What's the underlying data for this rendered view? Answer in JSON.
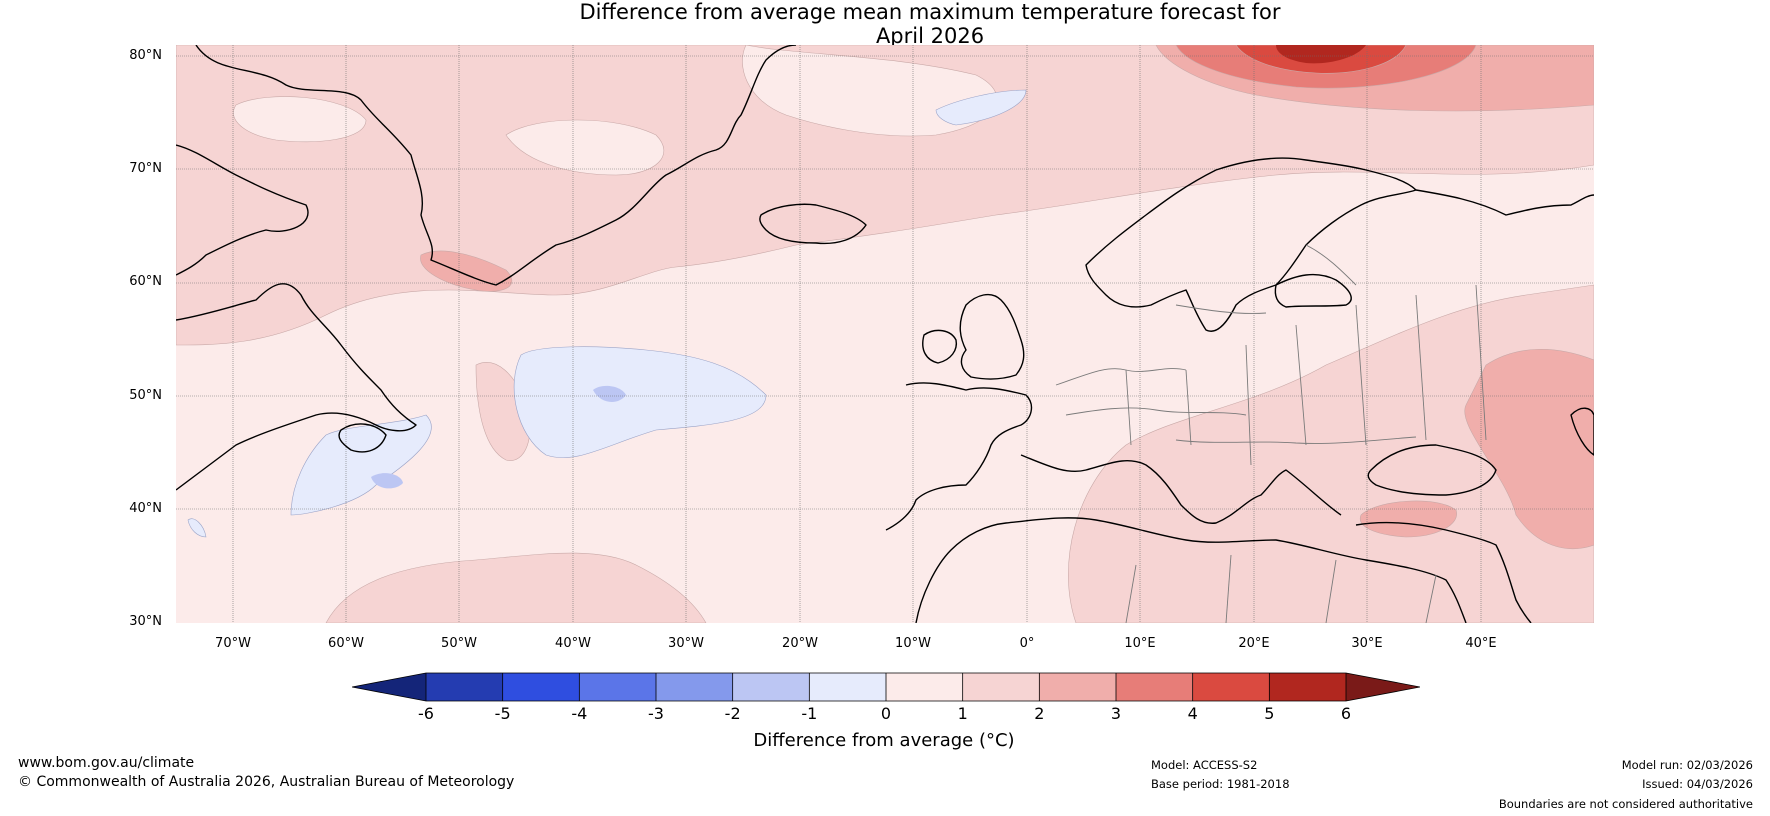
{
  "title": {
    "line1": "Difference from average mean maximum temperature forecast for",
    "line2": "April 2026"
  },
  "map": {
    "lat_labels": [
      "80°N",
      "70°N",
      "60°N",
      "50°N",
      "40°N",
      "30°N"
    ],
    "lon_labels": [
      "70°W",
      "60°W",
      "50°W",
      "40°W",
      "30°W",
      "20°W",
      "10°W",
      "0°",
      "10°E",
      "20°E",
      "30°E",
      "40°E"
    ],
    "lat_range": [
      30,
      81
    ],
    "lon_range": [
      -75,
      50
    ]
  },
  "colorbar": {
    "label": "Difference from average (°C)",
    "ticks": [
      "-6",
      "-5",
      "-4",
      "-3",
      "-2",
      "-1",
      "0",
      "1",
      "2",
      "3",
      "4",
      "5",
      "6"
    ],
    "colors": [
      "#142579",
      "#243cb1",
      "#2f4ee0",
      "#5b75e8",
      "#8499ec",
      "#bcc6f3",
      "#e6ebfc",
      "#fcebea",
      "#f6d4d3",
      "#f0aeab",
      "#e77d78",
      "#da4a40",
      "#b1271f",
      "#7a1a18"
    ]
  },
  "footer": {
    "website": "www.bom.gov.au/climate",
    "copyright": "© Commonwealth of Australia 2026, Australian Bureau of Meteorology",
    "model": "Model: ACCESS-S2",
    "base_period": "Base period: 1981-2018",
    "model_run": "Model run: 02/03/2026",
    "issued": "Issued: 04/03/2026",
    "disclaimer": "Boundaries are not considered authoritative"
  }
}
